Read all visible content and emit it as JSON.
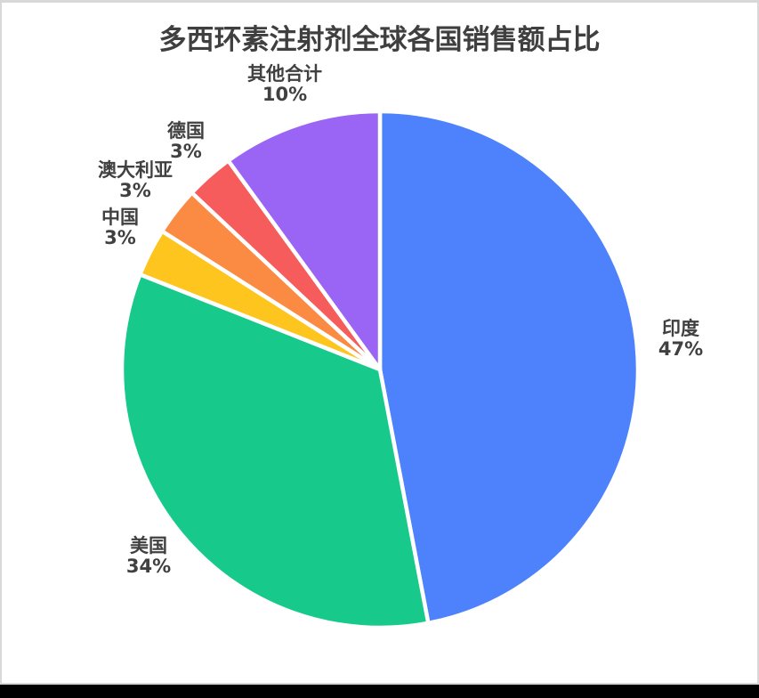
{
  "chart_data": {
    "type": "pie",
    "title": "多西环素注射剂全球各国销售额占比",
    "start_angle_deg": 0,
    "direction": "clockwise",
    "legend": "none",
    "labels_position": "outside",
    "background_color": "#ffffff",
    "title_color": "#3f3f3f",
    "label_color": "#404040",
    "slices": [
      {
        "label": "印度",
        "value": 47,
        "pct_label": "47%",
        "color": "#4D82FC"
      },
      {
        "label": "美国",
        "value": 34,
        "pct_label": "34%",
        "color": "#17C98B"
      },
      {
        "label": "中国",
        "value": 3,
        "pct_label": "3%",
        "color": "#FEC51E"
      },
      {
        "label": "澳大利亚",
        "value": 3,
        "pct_label": "3%",
        "color": "#FB8B42"
      },
      {
        "label": "德国",
        "value": 3,
        "pct_label": "3%",
        "color": "#F65C5C"
      },
      {
        "label": "其他合计",
        "value": 10,
        "pct_label": "10%",
        "color": "#9A65F5"
      }
    ]
  }
}
